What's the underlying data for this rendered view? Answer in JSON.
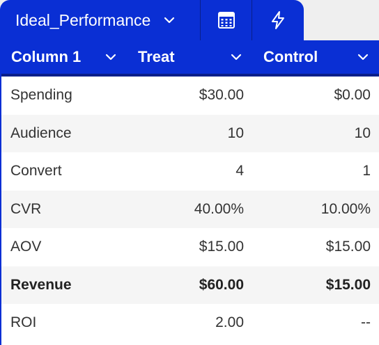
{
  "tab": {
    "name": "Ideal_Performance"
  },
  "colors": {
    "header_blue": "#0a2fd4",
    "divider_blue": "#0a1f8a"
  },
  "icons": {
    "tab_dropdown": "chevron-down-icon",
    "calculator": "calculator-icon",
    "bolt": "lightning-bolt-icon",
    "column_dropdown": "chevron-down-icon"
  },
  "table": {
    "columns": [
      "Column 1",
      "Treat",
      "Control"
    ],
    "rows": [
      {
        "label": "Spending",
        "treat": "$30.00",
        "control": "$0.00",
        "bold": false
      },
      {
        "label": "Audience",
        "treat": "10",
        "control": "10",
        "bold": false
      },
      {
        "label": "Convert",
        "treat": "4",
        "control": "1",
        "bold": false
      },
      {
        "label": "CVR",
        "treat": "40.00%",
        "control": "10.00%",
        "bold": false
      },
      {
        "label": "AOV",
        "treat": "$15.00",
        "control": "$15.00",
        "bold": false
      },
      {
        "label": "Revenue",
        "treat": "$60.00",
        "control": "$15.00",
        "bold": true
      },
      {
        "label": "ROI",
        "treat": "2.00",
        "control": "--",
        "bold": false
      }
    ]
  }
}
